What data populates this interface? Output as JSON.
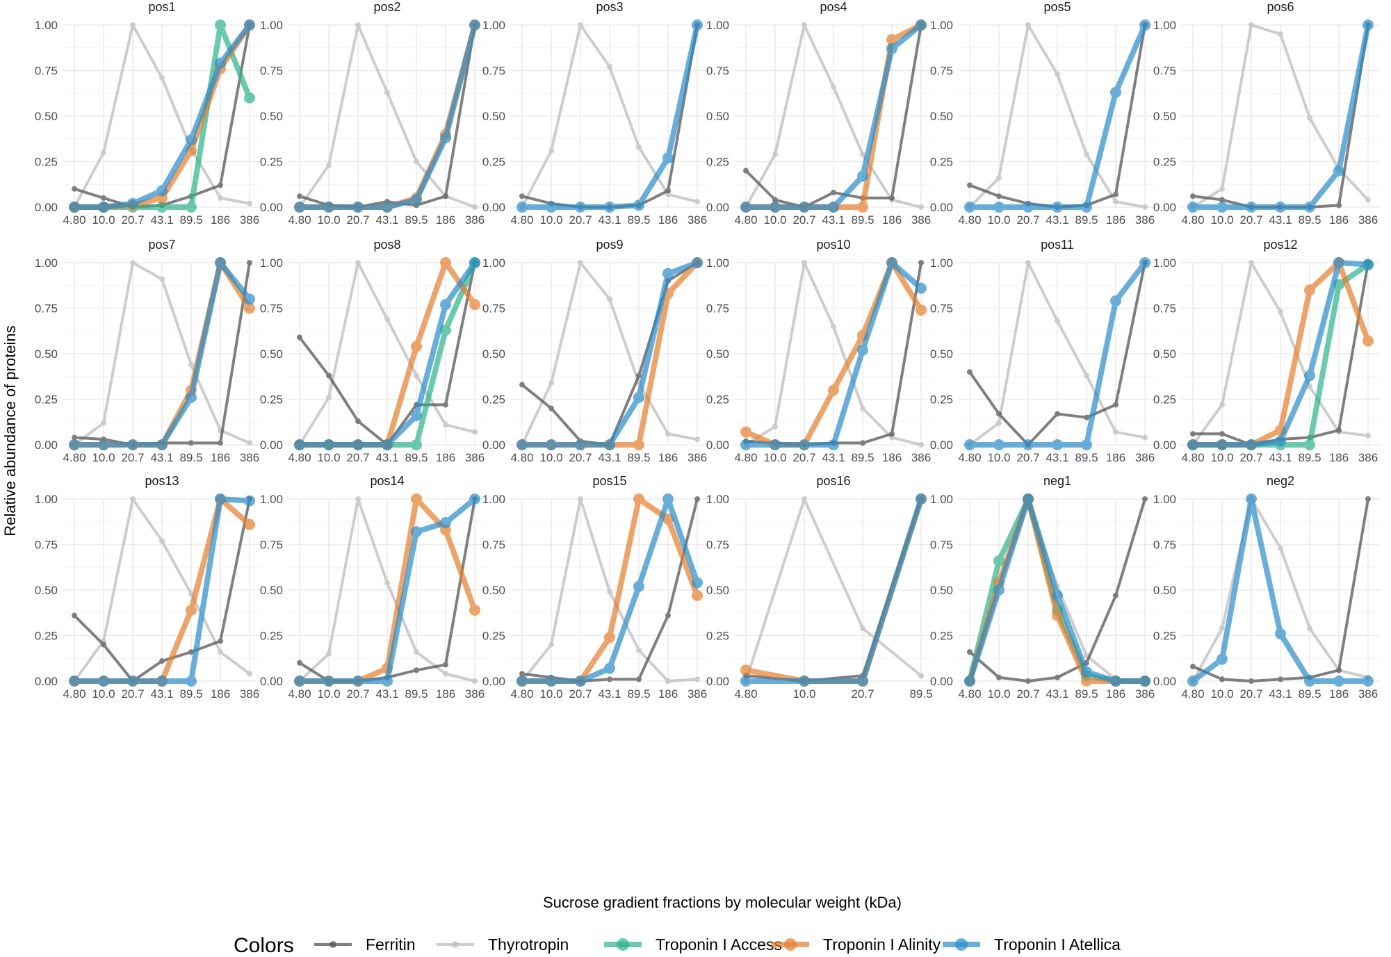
{
  "chart_data": {
    "type": "line",
    "xlabel": "Sucrose gradient fractions by molecular weight (kDa)",
    "ylabel": "Relative abundance of proteins",
    "ylim": [
      0,
      1
    ],
    "yticks": [
      "0.00",
      "0.25",
      "0.50",
      "0.75",
      "1.00"
    ],
    "categories": [
      "4.80",
      "10.0",
      "20.7",
      "43.1",
      "89.5",
      "186",
      "386"
    ],
    "grid": true,
    "legend": {
      "title": "Colors",
      "position": "bottom",
      "entries": [
        {
          "name": "Ferritin",
          "color": "#555555"
        },
        {
          "name": "Thyrotropin",
          "color": "#bdbdbd"
        },
        {
          "name": "Troponin I Access",
          "color": "#2db38b"
        },
        {
          "name": "Troponin I Alinity",
          "color": "#e57e2c"
        },
        {
          "name": "Troponin I Atellica",
          "color": "#2a8dc9"
        }
      ]
    },
    "panels": [
      {
        "title": "pos1",
        "series": {
          "Ferritin": [
            0.1,
            0.05,
            0.0,
            0.01,
            0.06,
            0.12,
            1.0
          ],
          "Thyrotropin": [
            0.0,
            0.3,
            1.0,
            0.71,
            0.32,
            0.05,
            0.02
          ],
          "Troponin I Access": [
            0,
            0,
            0,
            0,
            0,
            1.0,
            0.6
          ],
          "Troponin I Alinity": [
            0,
            0,
            0.01,
            0.05,
            0.31,
            0.76,
            1.0
          ],
          "Troponin I Atellica": [
            0,
            0,
            0.02,
            0.09,
            0.37,
            0.79,
            1.0
          ]
        }
      },
      {
        "title": "pos2",
        "series": {
          "Ferritin": [
            0.06,
            0.01,
            0.0,
            0.03,
            0.01,
            0.06,
            1.0
          ],
          "Thyrotropin": [
            0.0,
            0.23,
            1.0,
            0.63,
            0.25,
            0.06,
            0.0
          ],
          "Troponin I Alinity": [
            0,
            0,
            0,
            0,
            0.05,
            0.4,
            1.0
          ],
          "Troponin I Atellica": [
            0,
            0,
            0,
            0,
            0.04,
            0.38,
            1.0
          ]
        }
      },
      {
        "title": "pos3",
        "series": {
          "Ferritin": [
            0.06,
            0.02,
            0.0,
            0.0,
            0.01,
            0.09,
            1.0
          ],
          "Thyrotropin": [
            0.0,
            0.31,
            1.0,
            0.77,
            0.33,
            0.07,
            0.03
          ],
          "Troponin I Atellica": [
            0,
            0,
            0,
            0,
            0.01,
            0.27,
            1.0
          ]
        }
      },
      {
        "title": "pos4",
        "series": {
          "Ferritin": [
            0.2,
            0.04,
            0.0,
            0.08,
            0.05,
            0.05,
            1.0
          ],
          "Thyrotropin": [
            0.0,
            0.29,
            1.0,
            0.66,
            0.29,
            0.04,
            0.0
          ],
          "Troponin I Alinity": [
            0,
            0,
            0,
            0,
            0,
            0.92,
            1.0
          ],
          "Troponin I Atellica": [
            0,
            0,
            0,
            0,
            0.17,
            0.87,
            1.0
          ]
        }
      },
      {
        "title": "pos5",
        "series": {
          "Ferritin": [
            0.12,
            0.06,
            0.02,
            0.0,
            0.01,
            0.07,
            1.0
          ],
          "Thyrotropin": [
            0.0,
            0.16,
            1.0,
            0.73,
            0.29,
            0.03,
            0.0
          ],
          "Troponin I Atellica": [
            0,
            0,
            0,
            0,
            0,
            0.63,
            1.0
          ]
        }
      },
      {
        "title": "pos6",
        "series": {
          "Ferritin": [
            0.06,
            0.04,
            0.0,
            0.0,
            0.0,
            0.01,
            1.0
          ],
          "Thyrotropin": [
            0.0,
            0.1,
            1.0,
            0.95,
            0.49,
            0.21,
            0.04
          ],
          "Troponin I Atellica": [
            0,
            0,
            0,
            0,
            0,
            0.2,
            1.0
          ]
        }
      },
      {
        "title": "pos7",
        "series": {
          "Ferritin": [
            0.04,
            0.03,
            0.0,
            0.01,
            0.01,
            0.01,
            1.0
          ],
          "Thyrotropin": [
            0.0,
            0.12,
            1.0,
            0.91,
            0.44,
            0.08,
            0.01
          ],
          "Troponin I Alinity": [
            0,
            0,
            0,
            0,
            0.3,
            1.0,
            0.75
          ],
          "Troponin I Atellica": [
            0,
            0,
            0,
            0,
            0.26,
            1.0,
            0.8
          ]
        }
      },
      {
        "title": "pos8",
        "series": {
          "Ferritin": [
            0.59,
            0.38,
            0.13,
            0.0,
            0.22,
            0.22,
            1.0
          ],
          "Thyrotropin": [
            0.0,
            0.26,
            1.0,
            0.69,
            0.38,
            0.11,
            0.07
          ],
          "Troponin I Access": [
            0,
            0,
            0,
            0,
            0,
            0.63,
            1.0
          ],
          "Troponin I Alinity": [
            0,
            0,
            0,
            0,
            0.54,
            1.0,
            0.77
          ],
          "Troponin I Atellica": [
            0,
            0,
            0,
            0,
            0.16,
            0.77,
            1.0
          ]
        }
      },
      {
        "title": "pos9",
        "series": {
          "Ferritin": [
            0.33,
            0.2,
            0.02,
            0.0,
            0.38,
            0.9,
            1.0
          ],
          "Thyrotropin": [
            0.0,
            0.34,
            1.0,
            0.8,
            0.34,
            0.06,
            0.03
          ],
          "Troponin I Alinity": [
            0,
            0,
            0,
            0,
            0,
            0.83,
            1.0
          ],
          "Troponin I Atellica": [
            0,
            0,
            0,
            0,
            0.26,
            0.94,
            1.0
          ]
        }
      },
      {
        "title": "pos10",
        "series": {
          "Ferritin": [
            0.02,
            0.01,
            0.0,
            0.01,
            0.01,
            0.06,
            1.0
          ],
          "Thyrotropin": [
            0.0,
            0.1,
            1.0,
            0.65,
            0.2,
            0.04,
            0.0
          ],
          "Troponin I Alinity": [
            0.07,
            0,
            0,
            0.3,
            0.6,
            1.0,
            0.74
          ],
          "Troponin I Atellica": [
            0,
            0,
            0,
            0,
            0.52,
            1.0,
            0.86
          ]
        }
      },
      {
        "title": "pos11",
        "series": {
          "Ferritin": [
            0.4,
            0.17,
            0.0,
            0.17,
            0.15,
            0.22,
            1.0
          ],
          "Thyrotropin": [
            0.0,
            0.12,
            1.0,
            0.68,
            0.38,
            0.07,
            0.04
          ],
          "Troponin I Atellica": [
            0,
            0,
            0,
            0,
            0,
            0.79,
            1.0
          ]
        }
      },
      {
        "title": "pos12",
        "series": {
          "Ferritin": [
            0.06,
            0.06,
            0.0,
            0.03,
            0.04,
            0.08,
            1.0
          ],
          "Thyrotropin": [
            0.0,
            0.22,
            1.0,
            0.73,
            0.32,
            0.07,
            0.05
          ],
          "Troponin I Access": [
            0,
            0,
            0,
            0,
            0,
            0.88,
            0.99
          ],
          "Troponin I Alinity": [
            0,
            0,
            0,
            0.08,
            0.85,
            1.0,
            0.57
          ],
          "Troponin I Atellica": [
            0,
            0,
            0,
            0.02,
            0.38,
            1.0,
            0.99
          ]
        }
      },
      {
        "title": "pos13",
        "series": {
          "Ferritin": [
            0.36,
            0.2,
            0.0,
            0.11,
            0.16,
            0.22,
            1.0
          ],
          "Thyrotropin": [
            0.0,
            0.22,
            1.0,
            0.77,
            0.48,
            0.16,
            0.04
          ],
          "Troponin I Alinity": [
            0,
            0,
            0,
            0,
            0.39,
            1.0,
            0.86
          ],
          "Troponin I Atellica": [
            0,
            0,
            0,
            0,
            0,
            1.0,
            0.99
          ]
        }
      },
      {
        "title": "pos14",
        "series": {
          "Ferritin": [
            0.1,
            0.0,
            0.0,
            0.02,
            0.06,
            0.09,
            1.0
          ],
          "Thyrotropin": [
            0.0,
            0.15,
            1.0,
            0.54,
            0.16,
            0.04,
            0.0
          ],
          "Troponin I Alinity": [
            0,
            0,
            0,
            0.07,
            1.0,
            0.83,
            0.39
          ],
          "Troponin I Atellica": [
            0,
            0,
            0,
            0,
            0.82,
            0.87,
            1.0
          ]
        }
      },
      {
        "title": "pos15",
        "series": {
          "Ferritin": [
            0.04,
            0.02,
            0.0,
            0.01,
            0.01,
            0.36,
            1.0
          ],
          "Thyrotropin": [
            0.0,
            0.2,
            1.0,
            0.49,
            0.17,
            0.0,
            0.01
          ],
          "Troponin I Alinity": [
            0,
            0,
            0,
            0.24,
            1.0,
            0.89,
            0.47
          ],
          "Troponin I Atellica": [
            0,
            0,
            0,
            0.07,
            0.52,
            1.0,
            0.54
          ]
        }
      },
      {
        "title": "pos16",
        "categories": [
          "4.80",
          "10.0",
          "20.7",
          "89.5"
        ],
        "series": {
          "Ferritin": [
            0.03,
            0.0,
            0.03,
            1.0
          ],
          "Thyrotropin": [
            0.0,
            1.0,
            0.29,
            0.03
          ],
          "Troponin I Alinity": [
            0.06,
            0,
            0,
            1.0
          ],
          "Troponin I Atellica": [
            0,
            0,
            0,
            1.0
          ]
        }
      },
      {
        "title": "neg1",
        "series": {
          "Ferritin": [
            0.16,
            0.02,
            0.0,
            0.02,
            0.1,
            0.47,
            1.0
          ],
          "Thyrotropin": [
            0.0,
            0.55,
            1.0,
            0.52,
            0.14,
            0.01,
            0.0
          ],
          "Troponin I Access": [
            0,
            0.66,
            1.0,
            0.39,
            0.03,
            0,
            0
          ],
          "Troponin I Alinity": [
            0,
            0.54,
            1.0,
            0.36,
            0,
            0,
            0
          ],
          "Troponin I Atellica": [
            0,
            0.5,
            1.0,
            0.47,
            0.05,
            0,
            0
          ]
        }
      },
      {
        "title": "neg2",
        "series": {
          "Ferritin": [
            0.08,
            0.01,
            0.0,
            0.01,
            0.02,
            0.06,
            1.0
          ],
          "Thyrotropin": [
            0.0,
            0.29,
            1.0,
            0.73,
            0.29,
            0.06,
            0.02
          ],
          "Troponin I Atellica": [
            0,
            0.12,
            1.0,
            0.26,
            0,
            0,
            0
          ]
        }
      }
    ]
  }
}
